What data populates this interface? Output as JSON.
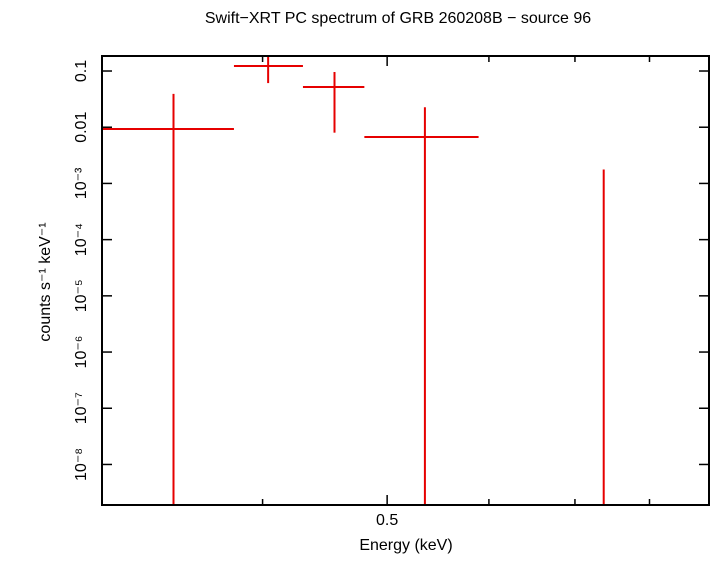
{
  "chart_data": {
    "type": "errorbar",
    "title": "Swift−XRT PC spectrum of GRB 260208B − source 96",
    "x_label": "Energy (keV)",
    "y_label": "counts s⁻¹ keV⁻¹",
    "x_log": true,
    "y_log": true,
    "xlim": [
      0.3,
      0.89
    ],
    "xticks": [
      0.5
    ],
    "xminor_ticks": [
      0.4,
      0.6,
      0.7,
      0.8
    ],
    "ylim": [
      1.9e-09,
      0.185
    ],
    "yticks": [
      {
        "value": 0.1,
        "label": "0.1"
      },
      {
        "value": 0.01,
        "label": "0.01"
      },
      {
        "value": 0.001,
        "label": "10⁻³"
      },
      {
        "value": 0.0001,
        "label": "10⁻⁴"
      },
      {
        "value": 1e-05,
        "label": "10⁻⁵"
      },
      {
        "value": 1e-06,
        "label": "10⁻⁶"
      },
      {
        "value": 1e-07,
        "label": "10⁻⁷"
      },
      {
        "value": 1e-08,
        "label": "10⁻⁸"
      }
    ],
    "color": "#e60000",
    "x": [
      0.341,
      0.404,
      0.455,
      0.535,
      0.737
    ],
    "x_low": [
      0.3,
      0.38,
      0.43,
      0.48,
      null
    ],
    "x_high": [
      0.38,
      0.43,
      0.48,
      0.589,
      null
    ],
    "y": [
      0.0093,
      0.123,
      0.052,
      0.0067,
      0
    ],
    "y_err": [
      0.03,
      0.062,
      0.044,
      0.016,
      0.00177
    ]
  }
}
